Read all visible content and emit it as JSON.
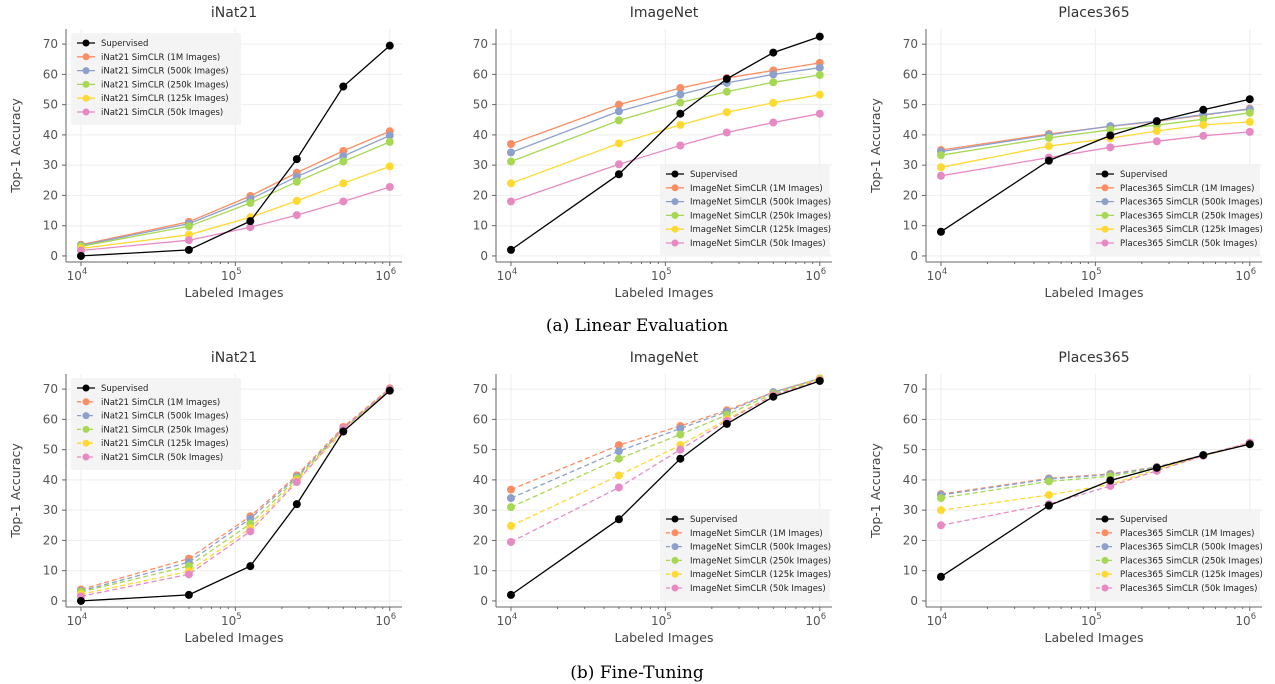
{
  "captions": [
    "(a) Linear Evaluation",
    "(b) Fine-Tuning"
  ],
  "colors": {
    "supervised": "#000000",
    "1M": "#fc8d62",
    "500k": "#8da0cb",
    "250k": "#a6d854",
    "125k": "#ffd92f",
    "50k": "#e78ac3"
  },
  "chart_data": [
    {
      "type": "line",
      "row": 0,
      "col": 0,
      "style": "solid",
      "title": "iNat21",
      "xlabel": "Labeled Images",
      "ylabel": "Top-1 Accuracy",
      "xscale": "log",
      "ylim": [
        -2,
        75
      ],
      "yticks": [
        0,
        10,
        20,
        30,
        40,
        50,
        60,
        70
      ],
      "xtick_labels": [
        "10",
        "10",
        "10"
      ],
      "xtick_exponents": [
        "4",
        "5",
        "6"
      ],
      "legend_position": "upper-left",
      "x": [
        10000,
        50000,
        125000,
        250000,
        500000,
        1000000
      ],
      "series": [
        {
          "name": "Supervised",
          "color_key": "supervised",
          "values": [
            0,
            2,
            11.5,
            32,
            56,
            69.5
          ]
        },
        {
          "name": "iNat21 SimCLR (1M Images)",
          "color_key": "1M",
          "values": [
            3.7,
            11.3,
            19.8,
            27.5,
            34.7,
            41.2
          ]
        },
        {
          "name": "iNat21 SimCLR (500k Images)",
          "color_key": "500k",
          "values": [
            3.5,
            10.7,
            18.8,
            26.2,
            33.0,
            39.8
          ]
        },
        {
          "name": "iNat21 SimCLR (250k Images)",
          "color_key": "250k",
          "values": [
            3.2,
            9.8,
            17.5,
            24.5,
            31.2,
            37.7
          ]
        },
        {
          "name": "iNat21 SimCLR (125k Images)",
          "color_key": "125k",
          "values": [
            2.5,
            7.0,
            12.8,
            18.2,
            24.0,
            29.6
          ]
        },
        {
          "name": "iNat21 SimCLR (50k Images)",
          "color_key": "50k",
          "values": [
            1.8,
            5.2,
            9.5,
            13.5,
            18.0,
            22.8
          ]
        }
      ]
    },
    {
      "type": "line",
      "row": 0,
      "col": 1,
      "style": "solid",
      "title": "ImageNet",
      "xlabel": "Labeled Images",
      "ylabel": "",
      "xscale": "log",
      "ylim": [
        -2,
        75
      ],
      "yticks": [
        0,
        10,
        20,
        30,
        40,
        50,
        60,
        70
      ],
      "xtick_labels": [
        "10",
        "10",
        "10"
      ],
      "xtick_exponents": [
        "4",
        "5",
        "6"
      ],
      "legend_position": "lower-right",
      "x": [
        10000,
        50000,
        125000,
        250000,
        500000,
        1000000
      ],
      "series": [
        {
          "name": "Supervised",
          "color_key": "supervised",
          "values": [
            2,
            27,
            47,
            58.5,
            67.2,
            72.5
          ]
        },
        {
          "name": "ImageNet SimCLR (1M Images)",
          "color_key": "1M",
          "values": [
            37,
            50,
            55.5,
            58.8,
            61.3,
            63.8
          ]
        },
        {
          "name": "ImageNet SimCLR (500k Images)",
          "color_key": "500k",
          "values": [
            34.2,
            47.8,
            53.4,
            57.2,
            60.0,
            62.2
          ]
        },
        {
          "name": "ImageNet SimCLR (250k Images)",
          "color_key": "250k",
          "values": [
            31.2,
            44.8,
            50.7,
            54.3,
            57.4,
            59.8
          ]
        },
        {
          "name": "ImageNet SimCLR (125k Images)",
          "color_key": "125k",
          "values": [
            24.0,
            37.2,
            43.3,
            47.5,
            50.6,
            53.3
          ]
        },
        {
          "name": "ImageNet SimCLR (50k Images)",
          "color_key": "50k",
          "values": [
            18.0,
            30.3,
            36.5,
            40.8,
            44.1,
            47.0
          ]
        }
      ]
    },
    {
      "type": "line",
      "row": 0,
      "col": 2,
      "style": "solid",
      "title": "Places365",
      "xlabel": "Labeled Images",
      "ylabel": "Top-1 Accuracy",
      "xscale": "log",
      "ylim": [
        -2,
        75
      ],
      "yticks": [
        0,
        10,
        20,
        30,
        40,
        50,
        60,
        70
      ],
      "xtick_labels": [
        "10",
        "10",
        "10"
      ],
      "xtick_exponents": [
        "4",
        "5",
        "6"
      ],
      "legend_position": "lower-right",
      "x": [
        10000,
        50000,
        125000,
        250000,
        500000,
        1000000
      ],
      "series": [
        {
          "name": "Supervised",
          "color_key": "supervised",
          "values": [
            8,
            31.5,
            39.8,
            44.5,
            48.3,
            51.8
          ]
        },
        {
          "name": "Places365 SimCLR (1M Images)",
          "color_key": "1M",
          "values": [
            35.0,
            40.3,
            42.8,
            44.5,
            46.5,
            48.7
          ]
        },
        {
          "name": "Places365 SimCLR (500k Images)",
          "color_key": "500k",
          "values": [
            34.5,
            40.0,
            42.9,
            44.6,
            46.7,
            48.5
          ]
        },
        {
          "name": "Places365 SimCLR (250k Images)",
          "color_key": "250k",
          "values": [
            33.3,
            39.0,
            41.7,
            43.2,
            45.2,
            47.3
          ]
        },
        {
          "name": "Places365 SimCLR (125k Images)",
          "color_key": "125k",
          "values": [
            29.3,
            36.3,
            38.9,
            41.3,
            43.3,
            44.3
          ]
        },
        {
          "name": "Places365 SimCLR (50k Images)",
          "color_key": "50k",
          "values": [
            26.5,
            32.5,
            35.9,
            37.9,
            39.7,
            41.0
          ]
        }
      ]
    },
    {
      "type": "line",
      "row": 1,
      "col": 0,
      "style": "dashed",
      "title": "iNat21",
      "xlabel": "Labeled Images",
      "ylabel": "Top-1 Accuracy",
      "xscale": "log",
      "ylim": [
        -2,
        75
      ],
      "yticks": [
        0,
        10,
        20,
        30,
        40,
        50,
        60,
        70
      ],
      "xtick_labels": [
        "10",
        "10",
        "10"
      ],
      "xtick_exponents": [
        "4",
        "5",
        "6"
      ],
      "legend_position": "upper-left",
      "x": [
        10000,
        50000,
        125000,
        250000,
        500000,
        1000000
      ],
      "series": [
        {
          "name": "Supervised",
          "color_key": "supervised",
          "values": [
            0,
            2,
            11.5,
            32,
            56,
            69.5
          ]
        },
        {
          "name": "iNat21 SimCLR (1M Images)",
          "color_key": "1M",
          "values": [
            3.8,
            14.0,
            28.0,
            41.5,
            57.5,
            70.3
          ]
        },
        {
          "name": "iNat21 SimCLR (500k Images)",
          "color_key": "500k",
          "values": [
            3.3,
            12.8,
            27.2,
            41.0,
            57.0,
            70.0
          ]
        },
        {
          "name": "iNat21 SimCLR (250k Images)",
          "color_key": "250k",
          "values": [
            3.0,
            11.5,
            25.5,
            40.5,
            56.8,
            69.8
          ]
        },
        {
          "name": "iNat21 SimCLR (125k Images)",
          "color_key": "125k",
          "values": [
            2.2,
            9.8,
            24.0,
            39.8,
            56.0,
            69.5
          ]
        },
        {
          "name": "iNat21 SimCLR (50k Images)",
          "color_key": "50k",
          "values": [
            1.5,
            8.8,
            23.0,
            39.3,
            57.0,
            70.0
          ]
        }
      ]
    },
    {
      "type": "line",
      "row": 1,
      "col": 1,
      "style": "dashed",
      "title": "ImageNet",
      "xlabel": "Labeled Images",
      "ylabel": "",
      "xscale": "log",
      "ylim": [
        -2,
        75
      ],
      "yticks": [
        0,
        10,
        20,
        30,
        40,
        50,
        60,
        70
      ],
      "xtick_labels": [
        "10",
        "10",
        "10"
      ],
      "xtick_exponents": [
        "4",
        "5",
        "6"
      ],
      "legend_position": "lower-right",
      "x": [
        10000,
        50000,
        125000,
        250000,
        500000,
        1000000
      ],
      "series": [
        {
          "name": "Supervised",
          "color_key": "supervised",
          "values": [
            2,
            27,
            47,
            58.5,
            67.5,
            72.7
          ]
        },
        {
          "name": "ImageNet SimCLR (1M Images)",
          "color_key": "1M",
          "values": [
            36.8,
            51.5,
            57.8,
            63.0,
            69.0,
            73.5
          ]
        },
        {
          "name": "ImageNet SimCLR (500k Images)",
          "color_key": "500k",
          "values": [
            34.0,
            49.5,
            57.0,
            62.5,
            69.0,
            73.5
          ]
        },
        {
          "name": "ImageNet SimCLR (250k Images)",
          "color_key": "250k",
          "values": [
            31.0,
            47.0,
            55.0,
            61.5,
            68.5,
            73.5
          ]
        },
        {
          "name": "ImageNet SimCLR (125k Images)",
          "color_key": "125k",
          "values": [
            24.8,
            41.5,
            51.5,
            60.0,
            68.0,
            73.3
          ]
        },
        {
          "name": "ImageNet SimCLR (50k Images)",
          "color_key": "50k",
          "values": [
            19.5,
            37.5,
            50.0,
            59.5,
            68.0,
            73.0
          ]
        }
      ]
    },
    {
      "type": "line",
      "row": 1,
      "col": 2,
      "style": "dashed",
      "title": "Places365",
      "xlabel": "Labeled Images",
      "ylabel": "Top-1 Accuracy",
      "xscale": "log",
      "ylim": [
        -2,
        75
      ],
      "yticks": [
        0,
        10,
        20,
        30,
        40,
        50,
        60,
        70
      ],
      "xtick_labels": [
        "10",
        "10",
        "10"
      ],
      "xtick_exponents": [
        "4",
        "5",
        "6"
      ],
      "legend_position": "lower-right",
      "x": [
        10000,
        50000,
        125000,
        250000,
        500000,
        1000000
      ],
      "series": [
        {
          "name": "Supervised",
          "color_key": "supervised",
          "values": [
            8,
            31.5,
            39.8,
            44.0,
            48.2,
            51.8
          ]
        },
        {
          "name": "Places365 SimCLR (1M Images)",
          "color_key": "1M",
          "values": [
            35.3,
            40.5,
            42.0,
            44.3,
            48.2,
            52.3
          ]
        },
        {
          "name": "Places365 SimCLR (500k Images)",
          "color_key": "500k",
          "values": [
            35.0,
            40.3,
            41.8,
            44.2,
            48.2,
            52.2
          ]
        },
        {
          "name": "Places365 SimCLR (250k Images)",
          "color_key": "250k",
          "values": [
            34.0,
            39.5,
            41.2,
            44.0,
            48.0,
            52.0
          ]
        },
        {
          "name": "Places365 SimCLR (125k Images)",
          "color_key": "125k",
          "values": [
            30.0,
            35.0,
            38.5,
            43.5,
            48.0,
            52.0
          ]
        },
        {
          "name": "Places365 SimCLR (50k Images)",
          "color_key": "50k",
          "values": [
            25.0,
            32.0,
            38.0,
            43.0,
            48.0,
            52.3
          ]
        }
      ]
    }
  ]
}
